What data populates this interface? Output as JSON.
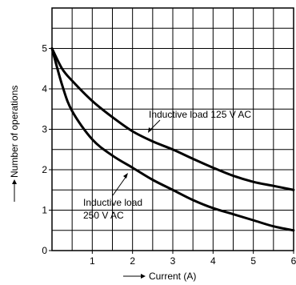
{
  "chart_data": {
    "type": "line",
    "xlabel": "Current (A)",
    "ylabel": "Number of operations",
    "xlim": [
      0,
      6
    ],
    "ylim": [
      0,
      6
    ],
    "x_ticks": [
      "1",
      "2",
      "3",
      "4",
      "5",
      "6"
    ],
    "y_ticks": [
      "0",
      "1",
      "2",
      "3",
      "4",
      "5"
    ],
    "grid": true,
    "legend": "none",
    "series": [
      {
        "name": "Inductive load 125 V AC",
        "x": [
          0,
          0.25,
          0.5,
          1,
          1.5,
          2,
          2.5,
          3,
          3.5,
          4,
          4.5,
          5,
          5.5,
          6
        ],
        "y": [
          5.0,
          4.5,
          4.2,
          3.7,
          3.3,
          2.95,
          2.7,
          2.5,
          2.27,
          2.05,
          1.85,
          1.7,
          1.6,
          1.5
        ]
      },
      {
        "name": "Inductive load 250 V AC",
        "x": [
          0,
          0.25,
          0.5,
          1,
          1.5,
          2,
          2.5,
          3,
          3.5,
          4,
          4.5,
          5,
          5.5,
          6
        ],
        "y": [
          5.0,
          4.1,
          3.45,
          2.75,
          2.35,
          2.05,
          1.75,
          1.5,
          1.25,
          1.05,
          0.9,
          0.75,
          0.6,
          0.5
        ]
      }
    ],
    "annotations": [
      {
        "text": "Inductive load 125 V AC",
        "series": 0
      },
      {
        "text": "Inductive load",
        "text2": "250 V AC",
        "series": 1
      }
    ]
  },
  "colors": {
    "line": "#000000",
    "grid": "#000000"
  }
}
